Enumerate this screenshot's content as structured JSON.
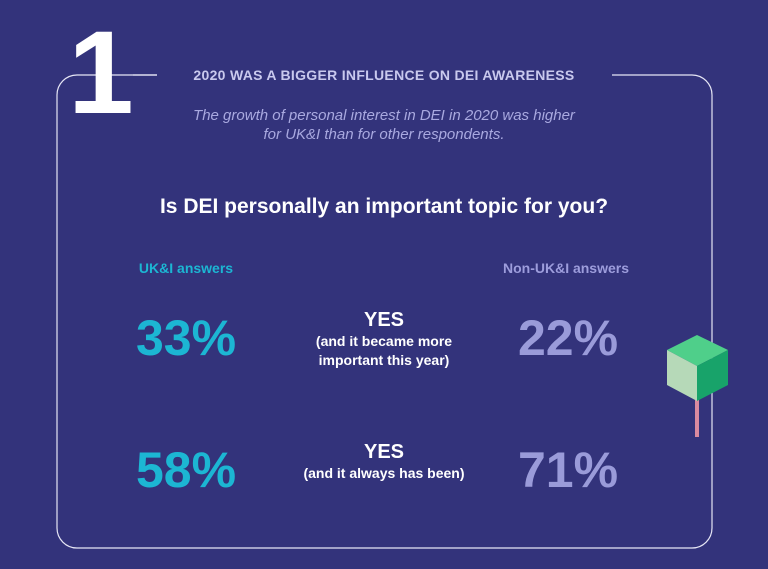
{
  "header": {
    "number": "1",
    "title": "2020 WAS A BIGGER INFLUENCE ON DEI AWARENESS",
    "subtitle_lines": [
      "The growth of personal interest in DEI in 2020 was higher",
      "for UK&I than for other respondents."
    ]
  },
  "question": "Is DEI personally an important topic for you?",
  "columns": {
    "left": "UK&I answers",
    "right": "Non-UK&I answers"
  },
  "rows": [
    {
      "left": "33%",
      "label": "YES",
      "detail_lines": [
        "(and it became more",
        "important this year)"
      ],
      "right": "22%"
    },
    {
      "left": "58%",
      "label": "YES",
      "detail_lines": [
        "(and it always has been)"
      ],
      "right": "71%"
    }
  ]
}
